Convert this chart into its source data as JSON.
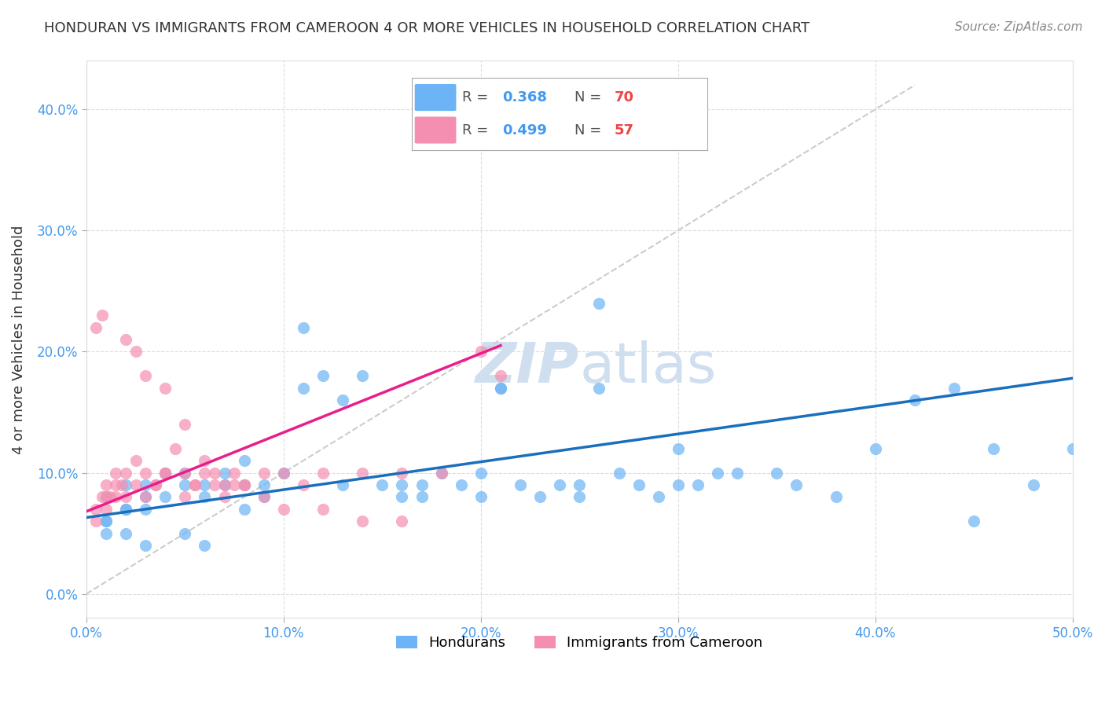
{
  "title": "HONDURAN VS IMMIGRANTS FROM CAMEROON 4 OR MORE VEHICLES IN HOUSEHOLD CORRELATION CHART",
  "source": "Source: ZipAtlas.com",
  "xlabel_ticks": [
    "0.0%",
    "10.0%",
    "20.0%",
    "30.0%",
    "40.0%",
    "50.0%"
  ],
  "xlabel_vals": [
    0.0,
    0.1,
    0.2,
    0.3,
    0.4,
    0.5
  ],
  "ylabel_ticks": [
    "0.0%",
    "10.0%",
    "20.0%",
    "30.0%",
    "40.0%"
  ],
  "ylabel_vals": [
    0.0,
    0.1,
    0.2,
    0.3,
    0.4
  ],
  "ylabel_label": "4 or more Vehicles in Household",
  "xlim": [
    0.0,
    0.5
  ],
  "ylim": [
    -0.02,
    0.44
  ],
  "blue_color": "#6cb4f5",
  "pink_color": "#f48fb1",
  "blue_line_color": "#1a6fbd",
  "pink_line_color": "#e91e8c",
  "diag_color": "#cccccc",
  "watermark_color": "#d0dff0",
  "blue_scatter_x": [
    0.01,
    0.01,
    0.02,
    0.01,
    0.02,
    0.01,
    0.02,
    0.03,
    0.03,
    0.04,
    0.03,
    0.05,
    0.04,
    0.06,
    0.05,
    0.06,
    0.07,
    0.07,
    0.08,
    0.08,
    0.09,
    0.08,
    0.09,
    0.1,
    0.11,
    0.12,
    0.11,
    0.13,
    0.14,
    0.13,
    0.15,
    0.16,
    0.16,
    0.17,
    0.18,
    0.17,
    0.19,
    0.2,
    0.2,
    0.21,
    0.22,
    0.23,
    0.24,
    0.25,
    0.25,
    0.26,
    0.27,
    0.28,
    0.29,
    0.3,
    0.3,
    0.31,
    0.32,
    0.33,
    0.35,
    0.36,
    0.38,
    0.4,
    0.42,
    0.44,
    0.46,
    0.48,
    0.5,
    0.02,
    0.03,
    0.05,
    0.06,
    0.21,
    0.26,
    0.45
  ],
  "blue_scatter_y": [
    0.06,
    0.08,
    0.07,
    0.05,
    0.09,
    0.06,
    0.07,
    0.08,
    0.09,
    0.1,
    0.07,
    0.09,
    0.08,
    0.09,
    0.1,
    0.08,
    0.09,
    0.1,
    0.11,
    0.09,
    0.08,
    0.07,
    0.09,
    0.1,
    0.22,
    0.18,
    0.17,
    0.16,
    0.18,
    0.09,
    0.09,
    0.09,
    0.08,
    0.09,
    0.1,
    0.08,
    0.09,
    0.1,
    0.08,
    0.17,
    0.09,
    0.08,
    0.09,
    0.09,
    0.08,
    0.17,
    0.1,
    0.09,
    0.08,
    0.12,
    0.09,
    0.09,
    0.1,
    0.1,
    0.1,
    0.09,
    0.08,
    0.12,
    0.16,
    0.17,
    0.12,
    0.09,
    0.12,
    0.05,
    0.04,
    0.05,
    0.04,
    0.17,
    0.24,
    0.06
  ],
  "pink_scatter_x": [
    0.005,
    0.005,
    0.008,
    0.01,
    0.01,
    0.012,
    0.015,
    0.015,
    0.018,
    0.02,
    0.02,
    0.025,
    0.025,
    0.03,
    0.03,
    0.035,
    0.04,
    0.04,
    0.045,
    0.05,
    0.05,
    0.055,
    0.06,
    0.065,
    0.07,
    0.075,
    0.08,
    0.09,
    0.1,
    0.11,
    0.12,
    0.14,
    0.16,
    0.18,
    0.21,
    0.005,
    0.008,
    0.01,
    0.015,
    0.02,
    0.025,
    0.03,
    0.035,
    0.04,
    0.05,
    0.055,
    0.06,
    0.065,
    0.07,
    0.075,
    0.08,
    0.09,
    0.1,
    0.12,
    0.14,
    0.16,
    0.2
  ],
  "pink_scatter_y": [
    0.06,
    0.07,
    0.08,
    0.09,
    0.07,
    0.08,
    0.1,
    0.08,
    0.09,
    0.1,
    0.08,
    0.09,
    0.11,
    0.1,
    0.08,
    0.09,
    0.17,
    0.1,
    0.12,
    0.14,
    0.1,
    0.09,
    0.11,
    0.1,
    0.09,
    0.1,
    0.09,
    0.1,
    0.1,
    0.09,
    0.1,
    0.1,
    0.1,
    0.1,
    0.18,
    0.22,
    0.23,
    0.08,
    0.09,
    0.21,
    0.2,
    0.18,
    0.09,
    0.1,
    0.08,
    0.09,
    0.1,
    0.09,
    0.08,
    0.09,
    0.09,
    0.08,
    0.07,
    0.07,
    0.06,
    0.06,
    0.2
  ],
  "blue_line_x": [
    0.0,
    0.5
  ],
  "blue_line_y": [
    0.063,
    0.178
  ],
  "pink_line_x": [
    0.0,
    0.21
  ],
  "pink_line_y": [
    0.068,
    0.205
  ],
  "diag_line_x": [
    0.0,
    0.42
  ],
  "diag_line_y": [
    0.0,
    0.42
  ],
  "title_fontsize": 13,
  "tick_fontsize": 12,
  "label_fontsize": 13,
  "source_fontsize": 11
}
